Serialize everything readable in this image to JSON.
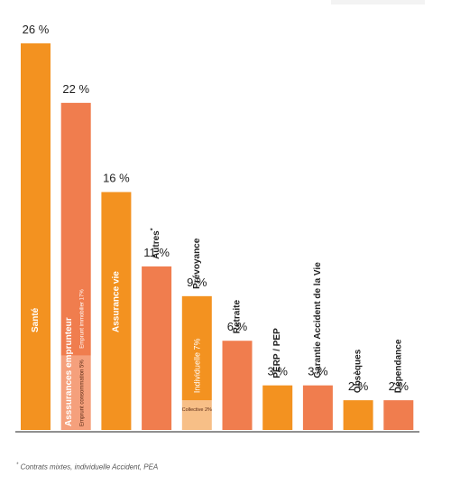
{
  "colors": {
    "orange": "#f39220",
    "coral": "#f07d4e",
    "light_orange": "#f4a35e",
    "light_coral": "#f5a07c",
    "pale_orange": "#f7bf87",
    "text": "#222222",
    "baseline": "#222222"
  },
  "chart_data": {
    "type": "bar",
    "title": "",
    "xlabel": "",
    "ylabel": "",
    "ylim": [
      0,
      26
    ],
    "grid": false,
    "categories": [
      "Santé",
      "Asssurances emprunteur",
      "Assurance vie",
      "Autres",
      "Prévoyance",
      "Retraite",
      "PERP / PEP",
      "Garantie Accident de la Vie",
      "Obsèques",
      "Dépendance"
    ],
    "values": [
      26,
      22,
      16,
      11,
      9,
      6,
      3,
      3,
      2,
      2
    ],
    "value_labels": [
      "26 %",
      "22 %",
      "16 %",
      "11 %",
      "9 %",
      "6 %",
      "3 %",
      "3 %",
      "2 %",
      "2 %"
    ],
    "category_markers": [
      "",
      "",
      "",
      "*",
      "",
      "",
      "",
      "",
      "",
      ""
    ],
    "bar_colors": [
      "#f39220",
      "#f07d4e",
      "#f39220",
      "#f07d4e",
      "#f39220",
      "#f07d4e",
      "#f39220",
      "#f07d4e",
      "#f39220",
      "#f07d4e"
    ],
    "labels_inside_bar": [
      true,
      true,
      true,
      false,
      false,
      false,
      false,
      false,
      false,
      false
    ],
    "segments": {
      "Asssurances emprunteur": [
        {
          "label": "Emprunt consommation 5%",
          "value": 5,
          "color": "#f5a07c"
        },
        {
          "label": "Emprunt immobilier 17%",
          "value": 17,
          "color": "#f07d4e"
        }
      ],
      "Prévoyance": [
        {
          "label": "Collective 2%",
          "value": 2,
          "color": "#f7bf87"
        },
        {
          "label": "Individuelle 7%",
          "value": 7,
          "color": "#f39220"
        }
      ]
    }
  },
  "footnote": {
    "marker": "*",
    "text": "Contrats mixtes, individuelle Accident, PEA"
  }
}
